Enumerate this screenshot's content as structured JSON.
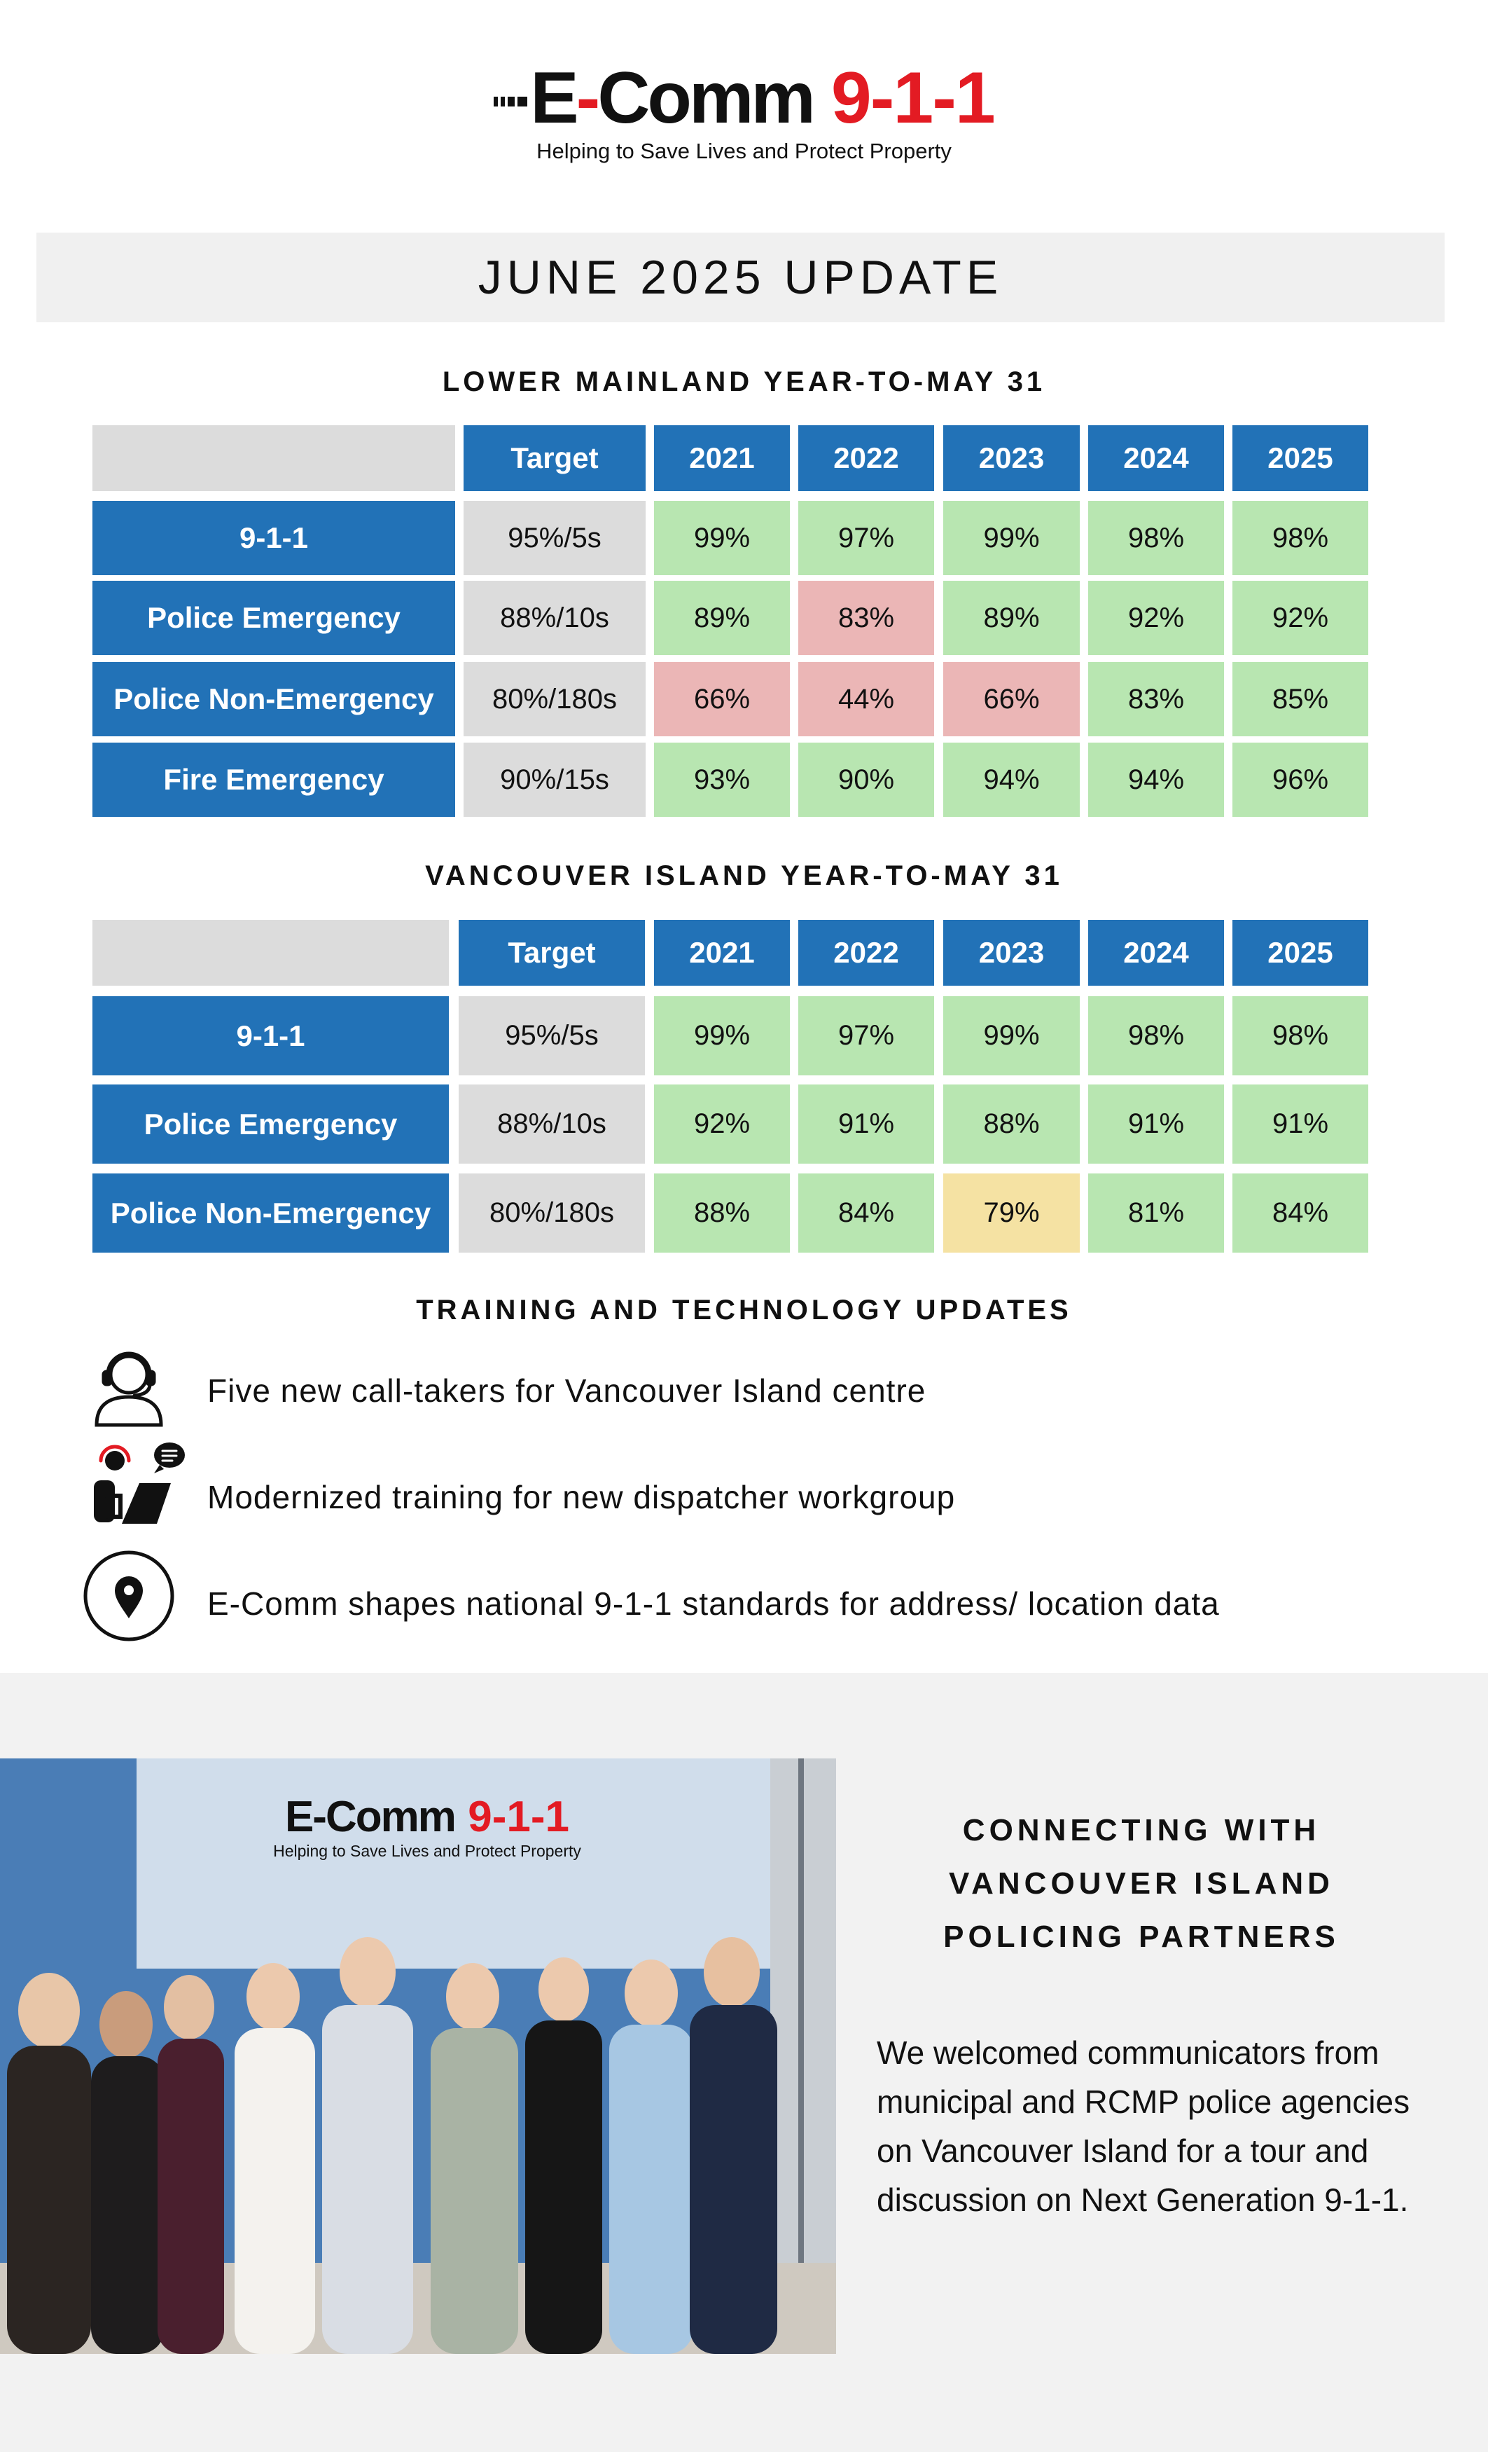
{
  "logo": {
    "name_part1": "E",
    "name_dash": "-",
    "name_part2": "Comm",
    "number": "9-1-1",
    "tagline": "Helping to Save Lives and Protect Property",
    "brand_color": "#e31b23"
  },
  "banner": {
    "title": "JUNE 2025 UPDATE"
  },
  "colors": {
    "header_blue": "#2272b7",
    "met_green": "#b8e6b1",
    "missed_red": "#ebb6b6",
    "near_yellow": "#f5e2a3",
    "target_grey": "#dcdcdc"
  },
  "lower_mainland": {
    "title": "LOWER MAINLAND YEAR-TO-MAY 31",
    "headers": [
      "Target",
      "2021",
      "2022",
      "2023",
      "2024",
      "2025"
    ],
    "rows": [
      {
        "label": "9-1-1",
        "target": "95%/5s",
        "values": [
          "99%",
          "97%",
          "99%",
          "98%",
          "98%"
        ],
        "status": [
          "green",
          "green",
          "green",
          "green",
          "green"
        ]
      },
      {
        "label": "Police Emergency",
        "target": "88%/10s",
        "values": [
          "89%",
          "83%",
          "89%",
          "92%",
          "92%"
        ],
        "status": [
          "green",
          "red",
          "green",
          "green",
          "green"
        ]
      },
      {
        "label": "Police Non-Emergency",
        "target": "80%/180s",
        "values": [
          "66%",
          "44%",
          "66%",
          "83%",
          "85%"
        ],
        "status": [
          "red",
          "red",
          "red",
          "green",
          "green"
        ]
      },
      {
        "label": "Fire Emergency",
        "target": "90%/15s",
        "values": [
          "93%",
          "90%",
          "94%",
          "94%",
          "96%"
        ],
        "status": [
          "green",
          "green",
          "green",
          "green",
          "green"
        ]
      }
    ]
  },
  "vancouver_island": {
    "title": "VANCOUVER ISLAND YEAR-TO-MAY 31",
    "headers": [
      "Target",
      "2021",
      "2022",
      "2023",
      "2024",
      "2025"
    ],
    "rows": [
      {
        "label": "9-1-1",
        "target": "95%/5s",
        "values": [
          "99%",
          "97%",
          "99%",
          "98%",
          "98%"
        ],
        "status": [
          "green",
          "green",
          "green",
          "green",
          "green"
        ]
      },
      {
        "label": "Police Emergency",
        "target": "88%/10s",
        "values": [
          "92%",
          "91%",
          "88%",
          "91%",
          "91%"
        ],
        "status": [
          "green",
          "green",
          "green",
          "green",
          "green"
        ]
      },
      {
        "label": "Police Non-Emergency",
        "target": "80%/180s",
        "values": [
          "88%",
          "84%",
          "79%",
          "81%",
          "84%"
        ],
        "status": [
          "green",
          "green",
          "yellow",
          "green",
          "green"
        ]
      }
    ]
  },
  "updates": {
    "title": "TRAINING AND TECHNOLOGY UPDATES",
    "items": [
      {
        "icon": "call-taker-headset-icon",
        "text": "Five new call-takers for Vancouver Island centre"
      },
      {
        "icon": "dispatcher-training-icon",
        "text": "Modernized training for new dispatcher workgroup"
      },
      {
        "icon": "location-pin-icon",
        "text": "E-Comm shapes national 9-1-1 standards for address/ location data"
      }
    ]
  },
  "partners": {
    "title_lines": [
      "CONNECTING WITH",
      "VANCOUVER ISLAND",
      "POLICING PARTNERS"
    ],
    "body": "We welcomed communicators from municipal and RCMP police agencies on Vancouver Island for a tour and discussion on Next Generation 9-1-1.",
    "photo_wall_logo": {
      "name": "E-Comm",
      "number": "9-1-1",
      "tagline": "Helping to Save Lives and Protect Property"
    }
  }
}
